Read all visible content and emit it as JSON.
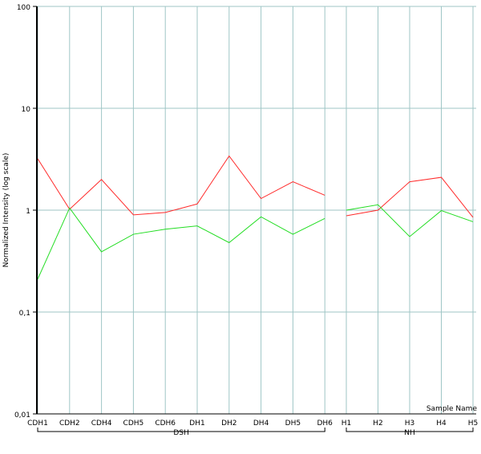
{
  "chart_data": {
    "type": "line",
    "ylabel": "Normalized Intensity (log scale)",
    "xlabel": "Sample Name",
    "yscale": "log",
    "ylim": [
      0.01,
      100
    ],
    "yticks": [
      {
        "value": 100,
        "label": "100"
      },
      {
        "value": 10,
        "label": "10"
      },
      {
        "value": 1,
        "label": "1"
      },
      {
        "value": 0.1,
        "label": "0,1"
      },
      {
        "value": 0.01,
        "label": "0,01"
      }
    ],
    "grid": true,
    "groups": [
      {
        "name": "DSH",
        "categories": [
          "CDH1",
          "CDH2",
          "CDH4",
          "CDH5",
          "CDH6",
          "DH1",
          "DH2",
          "DH4",
          "DH5",
          "DH6"
        ]
      },
      {
        "name": "NH",
        "categories": [
          "H1",
          "H2",
          "H3",
          "H4",
          "H5"
        ]
      }
    ],
    "series": [
      {
        "color": "#ff2a2a",
        "segments": [
          [
            3.2,
            1.02,
            2.0,
            0.9,
            0.95,
            1.15,
            3.4,
            1.3,
            1.9,
            1.4
          ],
          [
            0.88,
            1.0,
            1.9,
            2.1,
            0.85
          ]
        ]
      },
      {
        "color": "#22dd22",
        "segments": [
          [
            0.21,
            1.05,
            0.39,
            0.58,
            0.65,
            0.7,
            0.48,
            0.86,
            0.58,
            0.83
          ],
          [
            1.0,
            1.13,
            0.55,
            0.99,
            0.77
          ]
        ]
      }
    ]
  }
}
